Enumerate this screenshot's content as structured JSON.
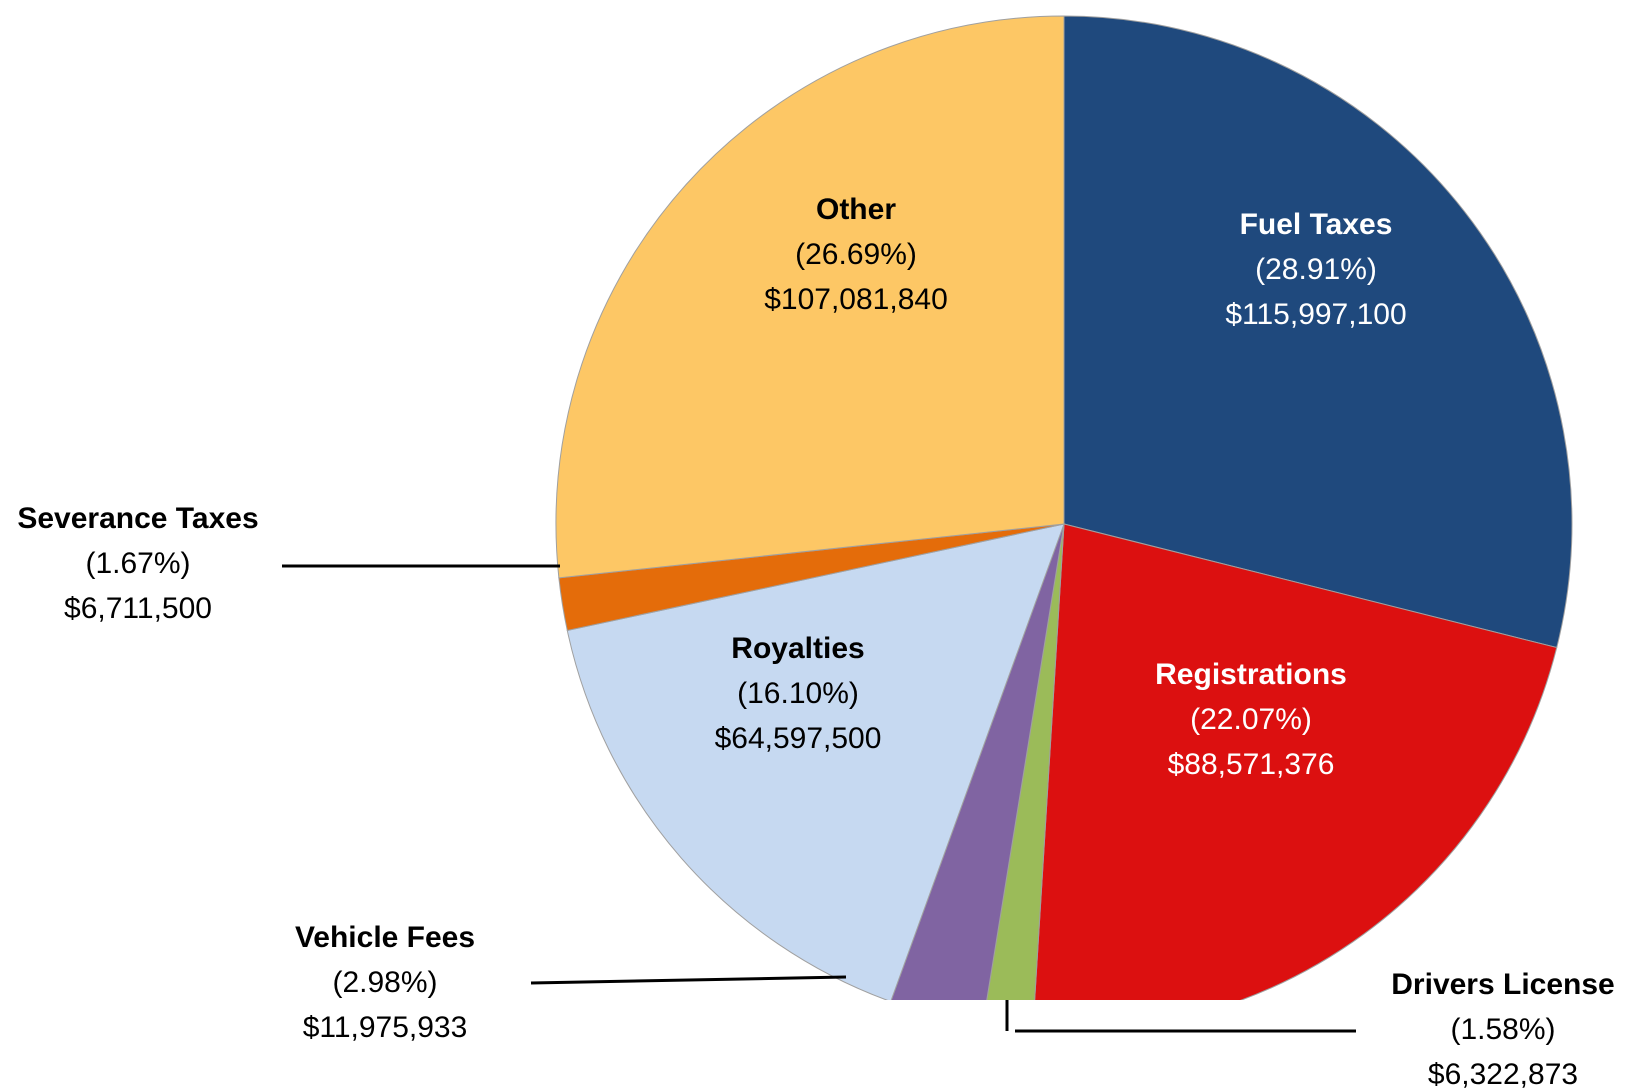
{
  "chart_data": {
    "type": "pie",
    "categories": [
      "Fuel Taxes",
      "Registrations",
      "Drivers License",
      "Vehicle Fees",
      "Royalties",
      "Severance Taxes",
      "Other"
    ],
    "values": [
      28.91,
      22.07,
      1.58,
      2.98,
      16.1,
      1.67,
      26.69
    ],
    "value_labels": [
      "(28.91%)",
      "(22.07%)",
      "(1.58%)",
      "(2.98%)",
      "(16.10%)",
      "(1.67%)",
      "(26.69%)"
    ],
    "amounts": [
      115997100,
      88571376,
      6322873,
      11975933,
      64597500,
      6711500,
      107081840
    ],
    "amount_labels": [
      "$115,997,100",
      "$88,571,376",
      "$6,322,873",
      "$11,975,933",
      "$64,597,500",
      "$6,711,500",
      "$107,081,840"
    ],
    "colors": [
      "#1f497d",
      "#dc1010",
      "#9bbb59",
      "#8064a2",
      "#c6d9f1",
      "#e46c0a",
      "#fdc765"
    ],
    "label_colors": [
      "#ffffff",
      "#ffffff",
      "#000000",
      "#000000",
      "#000000",
      "#000000",
      "#000000"
    ]
  }
}
